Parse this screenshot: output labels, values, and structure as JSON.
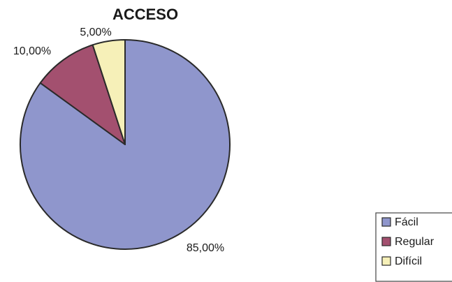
{
  "chart_data": {
    "type": "pie",
    "title": "ACCESO",
    "legend_position": "bottom-right",
    "slices": [
      {
        "label": "Fácil",
        "value": 85,
        "display": "85,00%",
        "color": "#8f96cc"
      },
      {
        "label": "Regular",
        "value": 10,
        "display": "10,00%",
        "color": "#a3506f"
      },
      {
        "label": "Difícil",
        "value": 5,
        "display": "5,00%",
        "color": "#f6f0b8"
      }
    ]
  }
}
